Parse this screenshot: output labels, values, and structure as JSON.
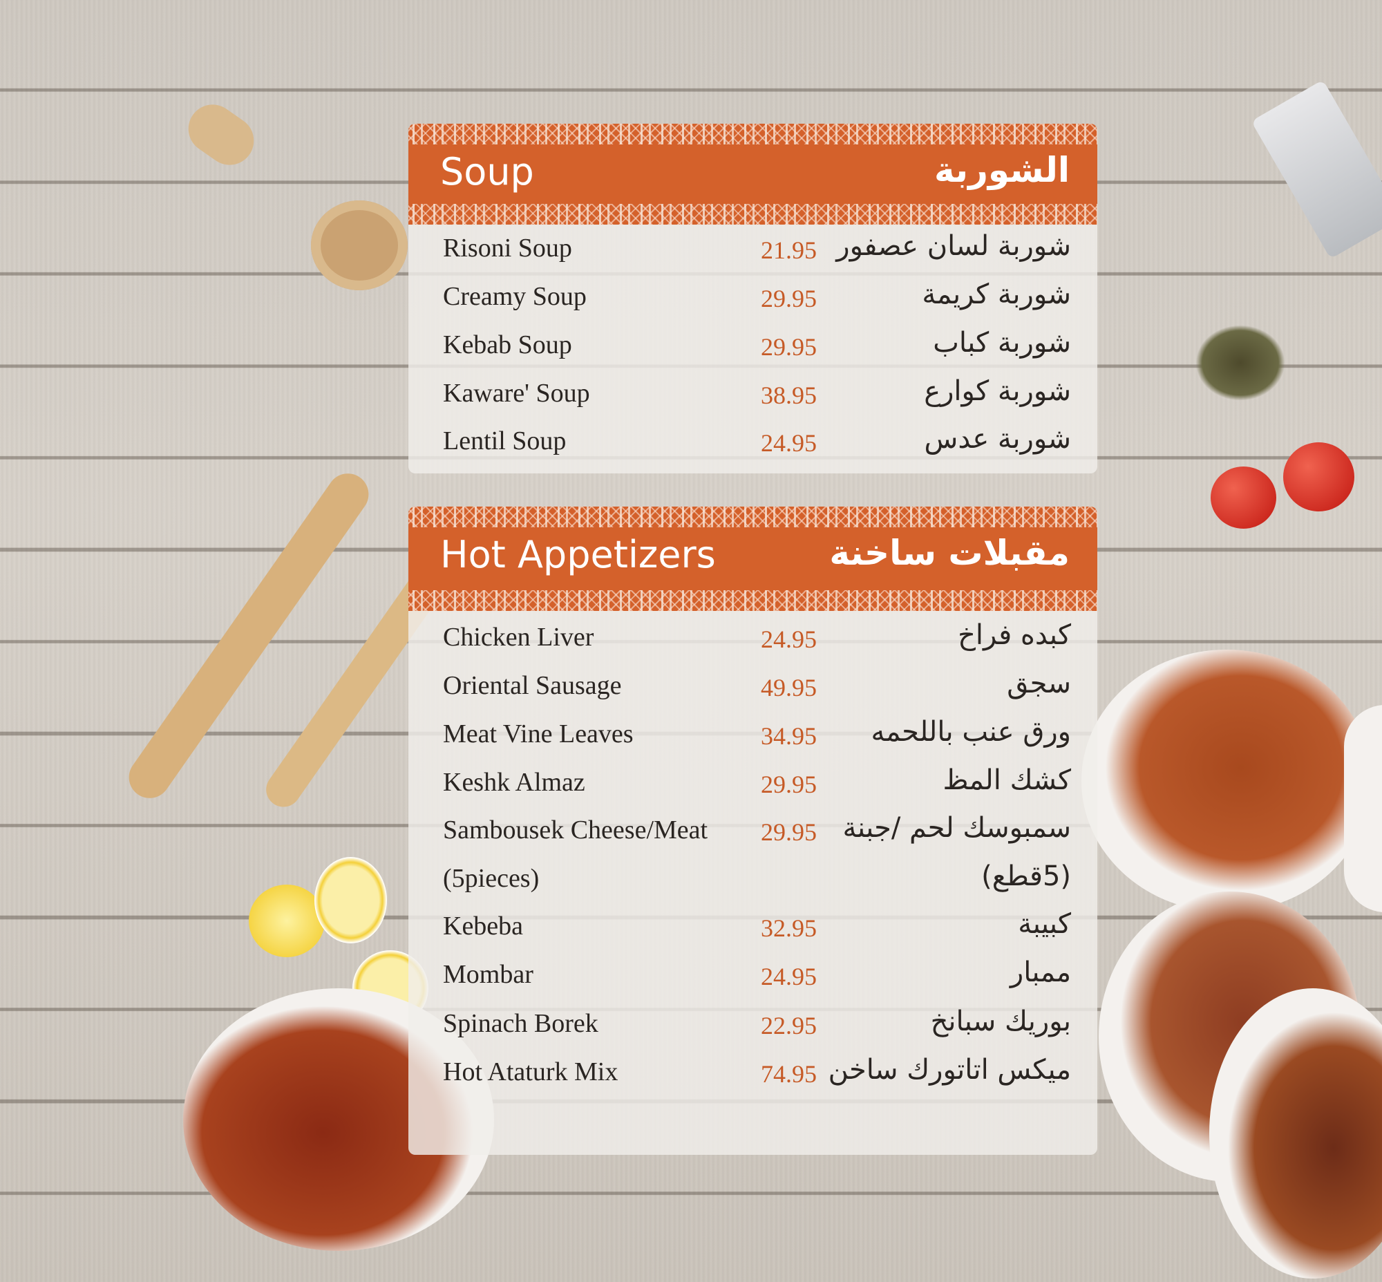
{
  "soup": {
    "title_en": "Soup",
    "title_ar": "الشوربة",
    "items": [
      {
        "en": "Risoni Soup",
        "price": "21.95",
        "ar": "شوربة لسان عصفور"
      },
      {
        "en": "Creamy Soup",
        "price": "29.95",
        "ar": "شوربة كريمة"
      },
      {
        "en": "Kebab Soup",
        "price": "29.95",
        "ar": "شوربة كباب"
      },
      {
        "en": "Kaware' Soup",
        "price": "38.95",
        "ar": "شوربة كوارع"
      },
      {
        "en": "Lentil Soup",
        "price": "24.95",
        "ar": "شوربة عدس"
      }
    ]
  },
  "hot_appetizers": {
    "title_en": "Hot Appetizers",
    "title_ar": "مقبلات ساخنة",
    "items": [
      {
        "en": "Chicken Liver",
        "price": "24.95",
        "ar": "كبده فراخ"
      },
      {
        "en": "Oriental Sausage",
        "price": "49.95",
        "ar": "سجق"
      },
      {
        "en": "Meat Vine Leaves",
        "price": "34.95",
        "ar": "ورق عنب باللحمه"
      },
      {
        "en": "Keshk Almaz",
        "price": "29.95",
        "ar": "كشك المظ"
      },
      {
        "en": "Sambousek Cheese/Meat",
        "price": "29.95",
        "ar": "سمبوسك لحم /جبنة"
      },
      {
        "en": "(5pieces)",
        "price": "",
        "ar": "(5قطع)"
      },
      {
        "en": "Kebeba",
        "price": "32.95",
        "ar": "كبيبة"
      },
      {
        "en": "Mombar",
        "price": "24.95",
        "ar": "ممبار"
      },
      {
        "en": "Spinach Borek",
        "price": "22.95",
        "ar": "بوريك سبانخ"
      },
      {
        "en": "Hot Ataturk Mix",
        "price": "74.95",
        "ar": "ميكس اتاتورك ساخن"
      }
    ]
  },
  "colors": {
    "accent": "#d4612b",
    "price": "#c65a26",
    "text": "#2a2522"
  }
}
